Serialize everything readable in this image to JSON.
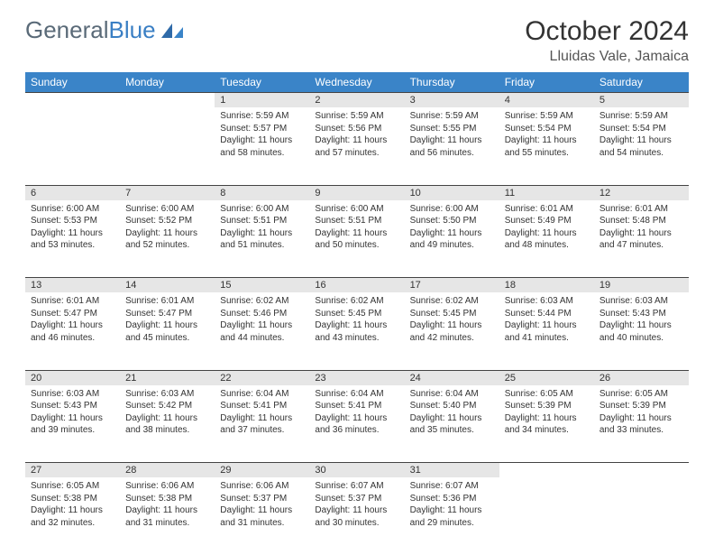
{
  "logo": {
    "text1": "General",
    "text2": "Blue"
  },
  "title": "October 2024",
  "location": "Lluidas Vale, Jamaica",
  "colors": {
    "header_bg": "#3a84c8",
    "header_text": "#ffffff",
    "daynum_bg": "#e6e6e6",
    "border": "#444444",
    "logo_gray": "#5a6a78",
    "logo_blue": "#3a7fc4"
  },
  "weekdays": [
    "Sunday",
    "Monday",
    "Tuesday",
    "Wednesday",
    "Thursday",
    "Friday",
    "Saturday"
  ],
  "weeks": [
    {
      "nums": [
        "",
        "",
        "1",
        "2",
        "3",
        "4",
        "5"
      ],
      "cells": [
        null,
        null,
        {
          "sunrise": "Sunrise: 5:59 AM",
          "sunset": "Sunset: 5:57 PM",
          "day1": "Daylight: 11 hours",
          "day2": "and 58 minutes."
        },
        {
          "sunrise": "Sunrise: 5:59 AM",
          "sunset": "Sunset: 5:56 PM",
          "day1": "Daylight: 11 hours",
          "day2": "and 57 minutes."
        },
        {
          "sunrise": "Sunrise: 5:59 AM",
          "sunset": "Sunset: 5:55 PM",
          "day1": "Daylight: 11 hours",
          "day2": "and 56 minutes."
        },
        {
          "sunrise": "Sunrise: 5:59 AM",
          "sunset": "Sunset: 5:54 PM",
          "day1": "Daylight: 11 hours",
          "day2": "and 55 minutes."
        },
        {
          "sunrise": "Sunrise: 5:59 AM",
          "sunset": "Sunset: 5:54 PM",
          "day1": "Daylight: 11 hours",
          "day2": "and 54 minutes."
        }
      ]
    },
    {
      "nums": [
        "6",
        "7",
        "8",
        "9",
        "10",
        "11",
        "12"
      ],
      "cells": [
        {
          "sunrise": "Sunrise: 6:00 AM",
          "sunset": "Sunset: 5:53 PM",
          "day1": "Daylight: 11 hours",
          "day2": "and 53 minutes."
        },
        {
          "sunrise": "Sunrise: 6:00 AM",
          "sunset": "Sunset: 5:52 PM",
          "day1": "Daylight: 11 hours",
          "day2": "and 52 minutes."
        },
        {
          "sunrise": "Sunrise: 6:00 AM",
          "sunset": "Sunset: 5:51 PM",
          "day1": "Daylight: 11 hours",
          "day2": "and 51 minutes."
        },
        {
          "sunrise": "Sunrise: 6:00 AM",
          "sunset": "Sunset: 5:51 PM",
          "day1": "Daylight: 11 hours",
          "day2": "and 50 minutes."
        },
        {
          "sunrise": "Sunrise: 6:00 AM",
          "sunset": "Sunset: 5:50 PM",
          "day1": "Daylight: 11 hours",
          "day2": "and 49 minutes."
        },
        {
          "sunrise": "Sunrise: 6:01 AM",
          "sunset": "Sunset: 5:49 PM",
          "day1": "Daylight: 11 hours",
          "day2": "and 48 minutes."
        },
        {
          "sunrise": "Sunrise: 6:01 AM",
          "sunset": "Sunset: 5:48 PM",
          "day1": "Daylight: 11 hours",
          "day2": "and 47 minutes."
        }
      ]
    },
    {
      "nums": [
        "13",
        "14",
        "15",
        "16",
        "17",
        "18",
        "19"
      ],
      "cells": [
        {
          "sunrise": "Sunrise: 6:01 AM",
          "sunset": "Sunset: 5:47 PM",
          "day1": "Daylight: 11 hours",
          "day2": "and 46 minutes."
        },
        {
          "sunrise": "Sunrise: 6:01 AM",
          "sunset": "Sunset: 5:47 PM",
          "day1": "Daylight: 11 hours",
          "day2": "and 45 minutes."
        },
        {
          "sunrise": "Sunrise: 6:02 AM",
          "sunset": "Sunset: 5:46 PM",
          "day1": "Daylight: 11 hours",
          "day2": "and 44 minutes."
        },
        {
          "sunrise": "Sunrise: 6:02 AM",
          "sunset": "Sunset: 5:45 PM",
          "day1": "Daylight: 11 hours",
          "day2": "and 43 minutes."
        },
        {
          "sunrise": "Sunrise: 6:02 AM",
          "sunset": "Sunset: 5:45 PM",
          "day1": "Daylight: 11 hours",
          "day2": "and 42 minutes."
        },
        {
          "sunrise": "Sunrise: 6:03 AM",
          "sunset": "Sunset: 5:44 PM",
          "day1": "Daylight: 11 hours",
          "day2": "and 41 minutes."
        },
        {
          "sunrise": "Sunrise: 6:03 AM",
          "sunset": "Sunset: 5:43 PM",
          "day1": "Daylight: 11 hours",
          "day2": "and 40 minutes."
        }
      ]
    },
    {
      "nums": [
        "20",
        "21",
        "22",
        "23",
        "24",
        "25",
        "26"
      ],
      "cells": [
        {
          "sunrise": "Sunrise: 6:03 AM",
          "sunset": "Sunset: 5:43 PM",
          "day1": "Daylight: 11 hours",
          "day2": "and 39 minutes."
        },
        {
          "sunrise": "Sunrise: 6:03 AM",
          "sunset": "Sunset: 5:42 PM",
          "day1": "Daylight: 11 hours",
          "day2": "and 38 minutes."
        },
        {
          "sunrise": "Sunrise: 6:04 AM",
          "sunset": "Sunset: 5:41 PM",
          "day1": "Daylight: 11 hours",
          "day2": "and 37 minutes."
        },
        {
          "sunrise": "Sunrise: 6:04 AM",
          "sunset": "Sunset: 5:41 PM",
          "day1": "Daylight: 11 hours",
          "day2": "and 36 minutes."
        },
        {
          "sunrise": "Sunrise: 6:04 AM",
          "sunset": "Sunset: 5:40 PM",
          "day1": "Daylight: 11 hours",
          "day2": "and 35 minutes."
        },
        {
          "sunrise": "Sunrise: 6:05 AM",
          "sunset": "Sunset: 5:39 PM",
          "day1": "Daylight: 11 hours",
          "day2": "and 34 minutes."
        },
        {
          "sunrise": "Sunrise: 6:05 AM",
          "sunset": "Sunset: 5:39 PM",
          "day1": "Daylight: 11 hours",
          "day2": "and 33 minutes."
        }
      ]
    },
    {
      "nums": [
        "27",
        "28",
        "29",
        "30",
        "31",
        "",
        ""
      ],
      "cells": [
        {
          "sunrise": "Sunrise: 6:05 AM",
          "sunset": "Sunset: 5:38 PM",
          "day1": "Daylight: 11 hours",
          "day2": "and 32 minutes."
        },
        {
          "sunrise": "Sunrise: 6:06 AM",
          "sunset": "Sunset: 5:38 PM",
          "day1": "Daylight: 11 hours",
          "day2": "and 31 minutes."
        },
        {
          "sunrise": "Sunrise: 6:06 AM",
          "sunset": "Sunset: 5:37 PM",
          "day1": "Daylight: 11 hours",
          "day2": "and 31 minutes."
        },
        {
          "sunrise": "Sunrise: 6:07 AM",
          "sunset": "Sunset: 5:37 PM",
          "day1": "Daylight: 11 hours",
          "day2": "and 30 minutes."
        },
        {
          "sunrise": "Sunrise: 6:07 AM",
          "sunset": "Sunset: 5:36 PM",
          "day1": "Daylight: 11 hours",
          "day2": "and 29 minutes."
        },
        null,
        null
      ]
    }
  ]
}
